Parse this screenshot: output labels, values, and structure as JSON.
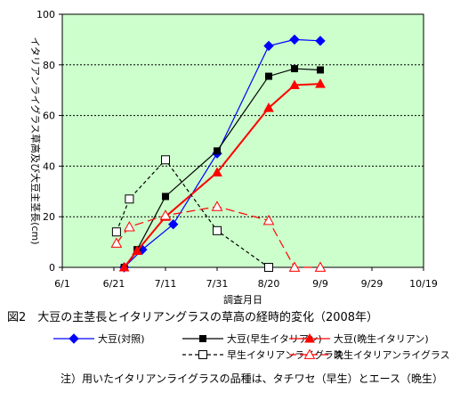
{
  "caption": "図2　大豆の主茎長とイタリアングラスの草高の経時的変化（2008年）",
  "note": "注）用いたイタリアンライグラスの品種は、タチワセ（早生）とエース（晩生）",
  "chart_data": {
    "type": "line",
    "title": "",
    "xlabel": "調査月日",
    "ylabel": "イタリアンライグラス草高及び大豆主茎長(cm)",
    "x_tick_labels": [
      "6/1",
      "6/21",
      "7/11",
      "7/31",
      "8/20",
      "9/9",
      "9/29",
      "10/19"
    ],
    "x_tick_days": [
      0,
      20,
      40,
      60,
      80,
      100,
      120,
      140
    ],
    "y_ticks": [
      0,
      20,
      40,
      60,
      80,
      100
    ],
    "ylim": [
      0,
      100
    ],
    "grid": "horizontal dotted",
    "legend_position": "bottom",
    "series": [
      {
        "name": "大豆(対照)",
        "color": "#0000ff",
        "marker": "diamond-filled",
        "dash": "solid",
        "x": [
          "6/25",
          "7/2",
          "7/14",
          "7/31",
          "8/20",
          "8/30",
          "9/9"
        ],
        "values": [
          0,
          7,
          17,
          45,
          87.5,
          90,
          89.5
        ]
      },
      {
        "name": "大豆(早生イタリアン)",
        "color": "#000000",
        "marker": "square-filled",
        "dash": "solid",
        "x": [
          "6/25",
          "6/30",
          "7/11",
          "7/31",
          "8/20",
          "8/30",
          "9/9"
        ],
        "values": [
          0,
          7,
          28,
          46,
          75.5,
          78.5,
          78
        ]
      },
      {
        "name": "大豆(晩生イタリアン)",
        "color": "#ff0000",
        "marker": "triangle-filled",
        "dash": "solid",
        "x": [
          "6/25",
          "6/30",
          "7/11",
          "7/31",
          "8/20",
          "8/30",
          "9/9"
        ],
        "values": [
          0,
          6.5,
          20,
          37.5,
          63,
          72,
          72.5
        ]
      },
      {
        "name": "早生イタリアンライグラス",
        "color": "#000000",
        "marker": "square-open",
        "dash": "dashed",
        "x": [
          "6/22",
          "6/27",
          "7/11",
          "7/31",
          "8/20"
        ],
        "values": [
          14,
          27,
          42.5,
          14.5,
          0
        ]
      },
      {
        "name": "晩生イタリアンライグラス",
        "color": "#ff0000",
        "marker": "triangle-open",
        "dash": "dashed",
        "x": [
          "6/22",
          "6/27",
          "7/11",
          "7/31",
          "8/20",
          "8/30",
          "9/9"
        ],
        "values": [
          9.5,
          16,
          20.5,
          24,
          18.5,
          0,
          0
        ]
      }
    ]
  }
}
